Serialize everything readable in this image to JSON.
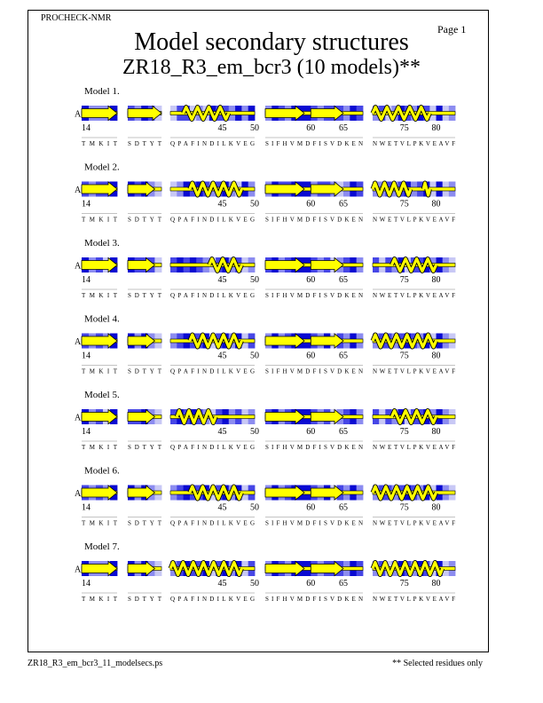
{
  "header": {
    "program": "PROCHECK-NMR",
    "page_label": "Page  1",
    "title": "Model secondary structures",
    "subtitle": "ZR18_R3_em_bcr3 (10 models)**"
  },
  "footer": {
    "filename": "ZR18_R3_em_bcr3_11_modelsecs.ps",
    "note": "** Selected residues only"
  },
  "chain_label": "A",
  "segments": [
    {
      "seq": "TMKIT",
      "numbers": [
        {
          "label": "14",
          "at": 0
        }
      ]
    },
    {
      "seq": "SDTYT",
      "numbers": []
    },
    {
      "seq": "QPAFINDILKVEG",
      "numbers": [
        {
          "label": "45",
          "at": 8
        },
        {
          "label": "50",
          "at": 13
        }
      ]
    },
    {
      "seq": "SIFHVMDFISVDKEN",
      "numbers": [
        {
          "label": "60",
          "at": 7
        },
        {
          "label": "65",
          "at": 12
        }
      ]
    },
    {
      "seq": "NWETVLPKVEAVF",
      "numbers": [
        {
          "label": "75",
          "at": 5
        },
        {
          "label": "80",
          "at": 10
        }
      ]
    }
  ],
  "colors": {
    "strand": "#ffff00",
    "helix": "#ffff00",
    "outline": "#000000",
    "shade_scale": [
      "#ffffff",
      "#c8c8f5",
      "#8c8cf0",
      "#4646e6",
      "#0a0ad2"
    ]
  },
  "models": [
    {
      "label": "Model  1.",
      "ss": [
        [
          [
            "E",
            0,
            5
          ]
        ],
        [
          [
            "E",
            0,
            5
          ]
        ],
        [
          [
            "H",
            2,
            9
          ]
        ],
        [
          [
            "E",
            0,
            6
          ],
          [
            "E",
            7,
            12
          ]
        ],
        [
          [
            "H",
            0,
            9
          ]
        ]
      ],
      "shade": [
        "42224",
        "32431",
        "1331214332424",
        "243244432333",
        "2312432431412"
      ]
    },
    {
      "label": "Model  2.",
      "ss": [
        [
          [
            "E",
            0,
            5
          ]
        ],
        [
          [
            "E",
            0,
            4
          ]
        ],
        [
          [
            "H",
            3,
            11
          ]
        ],
        [
          [
            "E",
            0,
            6
          ],
          [
            "E",
            7,
            12
          ]
        ],
        [
          [
            "H",
            0,
            6
          ],
          [
            "H",
            8,
            9
          ]
        ]
      ],
      "shade": [
        "32334",
        "43421",
        "1243432342142",
        "243344423321",
        "2232342341412"
      ]
    },
    {
      "label": "Model  3.",
      "ss": [
        [
          [
            "E",
            0,
            5
          ]
        ],
        [
          [
            "E",
            0,
            4
          ]
        ],
        [
          [
            "H",
            6,
            11
          ]
        ],
        [
          [
            "E",
            0,
            6
          ],
          [
            "E",
            7,
            12
          ]
        ],
        [
          [
            "H",
            3,
            10
          ]
        ]
      ],
      "shade": [
        "42314",
        "43331",
        "3434321342312",
        "342344432312",
        "3132413342421"
      ]
    },
    {
      "label": "Model  4.",
      "ss": [
        [
          [
            "E",
            0,
            5
          ]
        ],
        [
          [
            "E",
            0,
            4
          ]
        ],
        [
          [
            "H",
            3,
            11
          ]
        ],
        [
          [
            "E",
            0,
            6
          ],
          [
            "E",
            7,
            12
          ]
        ],
        [
          [
            "H",
            0,
            10
          ]
        ]
      ],
      "shade": [
        "32324",
        "42421",
        "2343341342413",
        "242344432413",
        "2332343241421"
      ]
    },
    {
      "label": "Model  5.",
      "ss": [
        [
          [
            "E",
            0,
            5
          ]
        ],
        [
          [
            "E",
            0,
            4
          ]
        ],
        [
          [
            "H",
            1,
            7
          ]
        ],
        [
          [
            "E",
            0,
            6
          ],
          [
            "E",
            7,
            12
          ]
        ],
        [
          [
            "H",
            3,
            10
          ]
        ]
      ],
      "shade": [
        "42314",
        "33421",
        "3434321342312",
        "342344432312",
        "3132413342421"
      ]
    },
    {
      "label": "Model  6.",
      "ss": [
        [
          [
            "E",
            0,
            5
          ]
        ],
        [
          [
            "E",
            0,
            4
          ]
        ],
        [
          [
            "H",
            3,
            11
          ]
        ],
        [
          [
            "E",
            0,
            6
          ],
          [
            "E",
            7,
            12
          ]
        ],
        [
          [
            "H",
            0,
            10
          ]
        ]
      ],
      "shade": [
        "32324",
        "42421",
        "2343341342413",
        "242344432413",
        "2332343241421"
      ]
    },
    {
      "label": "Model  7.",
      "ss": [
        [
          [
            "E",
            0,
            5
          ]
        ],
        [
          [
            "E",
            0,
            4
          ]
        ],
        [
          [
            "H",
            0,
            11
          ]
        ],
        [
          [
            "E",
            0,
            6
          ],
          [
            "E",
            7,
            12
          ]
        ],
        [
          [
            "H",
            0,
            11
          ]
        ]
      ],
      "shade": [
        "42224",
        "42421",
        "2343341342413",
        "243244432333",
        "2312432431412"
      ]
    }
  ]
}
